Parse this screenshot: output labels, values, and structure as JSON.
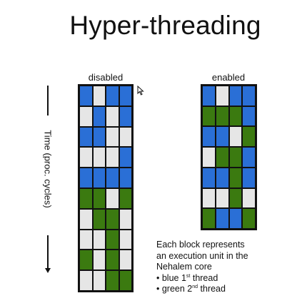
{
  "title": "Hyper-threading",
  "axis_label": "Time (proc. cycles)",
  "colors": {
    "blue": "#2a6fd6",
    "green": "#3b7a10",
    "idle": "#e6e6e6",
    "border": "#111111"
  },
  "disabled": {
    "label": "disabled",
    "rows": [
      [
        "b",
        "w",
        "b",
        "b"
      ],
      [
        "w",
        "b",
        "w",
        "b"
      ],
      [
        "b",
        "b",
        "w",
        "w"
      ],
      [
        "w",
        "w",
        "w",
        "b"
      ],
      [
        "b",
        "b",
        "b",
        "b"
      ],
      [
        "g",
        "g",
        "w",
        "g"
      ],
      [
        "w",
        "g",
        "g",
        "w"
      ],
      [
        "w",
        "w",
        "g",
        "w"
      ],
      [
        "g",
        "w",
        "g",
        "w"
      ],
      [
        "w",
        "w",
        "g",
        "g"
      ]
    ]
  },
  "enabled": {
    "label": "enabled",
    "rows": [
      [
        "b",
        "w",
        "b",
        "b"
      ],
      [
        "g",
        "g",
        "g",
        "b"
      ],
      [
        "b",
        "b",
        "w",
        "g"
      ],
      [
        "w",
        "g",
        "g",
        "b"
      ],
      [
        "b",
        "b",
        "g",
        "b"
      ],
      [
        "w",
        "w",
        "g",
        "w"
      ],
      [
        "g",
        "b",
        "b",
        "g"
      ]
    ]
  },
  "legend": {
    "line1": "Each block represents",
    "line2": "an execution unit in the",
    "line3": "Nehalem core",
    "blue_prefix": "• blue 1",
    "blue_sup": "st",
    "blue_suffix": " thread",
    "green_prefix": "• green 2",
    "green_sup": "nd",
    "green_suffix": " thread"
  }
}
